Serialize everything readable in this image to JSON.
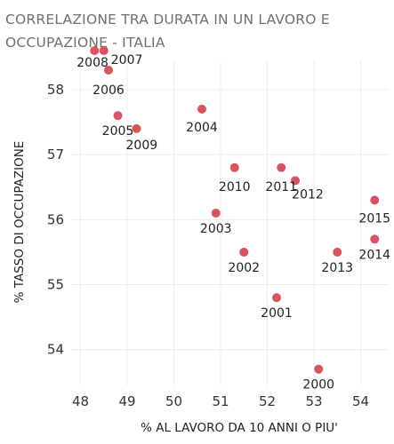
{
  "chart_data": {
    "type": "scatter",
    "title": "CORRELAZIONE TRA DURATA IN UN LAVORO E OCCUPAZIONE - ITALIA",
    "xlabel": "% AL LAVORO DA 10 ANNI O PIU'",
    "ylabel": "% TASSO DI OCCUPAZIONE",
    "xlim": [
      47.8,
      54.6
    ],
    "ylim": [
      53.45,
      58.45
    ],
    "xticks": [
      48,
      49,
      50,
      51,
      52,
      53,
      54
    ],
    "yticks": [
      54,
      55,
      56,
      57,
      58
    ],
    "grid": true,
    "color": "#d9545f",
    "points": [
      {
        "label": "2000",
        "x": 53.1,
        "y": 53.7
      },
      {
        "label": "2001",
        "x": 52.2,
        "y": 54.8
      },
      {
        "label": "2002",
        "x": 51.5,
        "y": 55.5
      },
      {
        "label": "2003",
        "x": 50.9,
        "y": 56.1
      },
      {
        "label": "2004",
        "x": 50.6,
        "y": 57.7
      },
      {
        "label": "2005",
        "x": 48.8,
        "y": 57.6
      },
      {
        "label": "2006",
        "x": 48.6,
        "y": 58.3
      },
      {
        "label": "2007",
        "x": 48.5,
        "y": 58.6
      },
      {
        "label": "2008",
        "x": 48.3,
        "y": 58.6
      },
      {
        "label": "2009",
        "x": 49.2,
        "y": 57.4
      },
      {
        "label": "2010",
        "x": 51.3,
        "y": 56.8
      },
      {
        "label": "2011",
        "x": 52.3,
        "y": 56.8
      },
      {
        "label": "2012",
        "x": 52.6,
        "y": 56.6
      },
      {
        "label": "2013",
        "x": 53.5,
        "y": 55.5
      },
      {
        "label": "2014",
        "x": 54.3,
        "y": 55.7
      },
      {
        "label": "2015",
        "x": 54.3,
        "y": 56.3
      }
    ]
  }
}
